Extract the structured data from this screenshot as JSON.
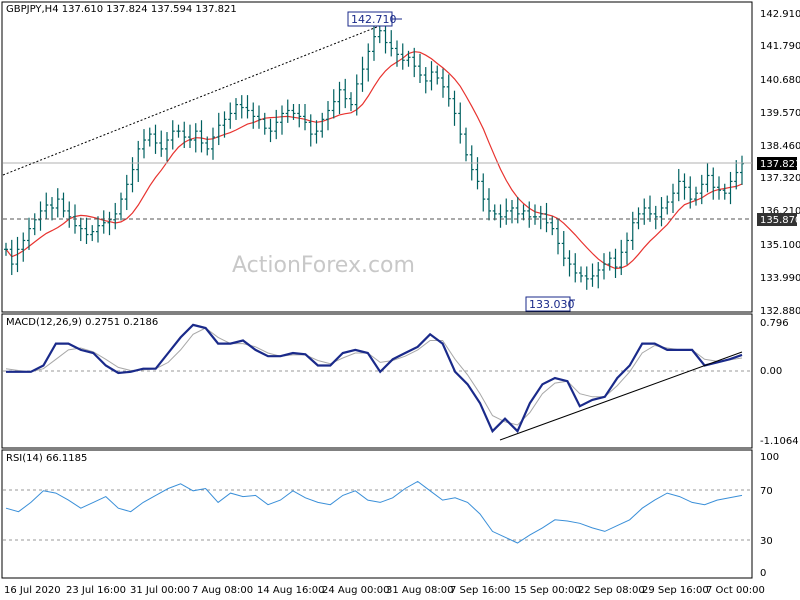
{
  "header": {
    "symbol": "GBPJPY,H4",
    "ohlc": "137.610 137.824 137.594 137.821"
  },
  "macd_panel": {
    "label": "MACD(12,26,9) 0.2751 0.2186"
  },
  "rsi_panel": {
    "label": "RSI(14) 66.1185"
  },
  "watermark": "ActionForex.com",
  "colors": {
    "candle": "#006060",
    "ma": "#e8332f",
    "macd_line": "#1a2a8a",
    "signal_line": "#a8a8a8",
    "rsi_line": "#3a8fd8",
    "callout_border": "#1a2a8a",
    "level_line": "#555555"
  },
  "chart_data": [
    {
      "type": "candlestick",
      "name": "price",
      "ylim": [
        132.88,
        142.9
      ],
      "y_ticks": [
        "142.910",
        "141.790",
        "140.680",
        "139.570",
        "138.460",
        "137.320",
        "136.210",
        "135.100",
        "133.990",
        "132.880"
      ],
      "current_price_label": "137.821",
      "level_label": "135.870",
      "callouts": [
        {
          "label": "142.710"
        },
        {
          "label": "133.030"
        }
      ],
      "x_labels": [
        "16 Jul 2020",
        "23 Jul 16:00",
        "31 Jul 00:00",
        "7 Aug 08:00",
        "14 Aug 16:00",
        "24 Aug 00:00",
        "31 Aug 08:00",
        "7 Sep 16:00",
        "15 Sep 00:00",
        "22 Sep 08:00",
        "29 Sep 16:00",
        "7 Oct 00:00"
      ],
      "close": [
        134.9,
        134.4,
        134.9,
        135.2,
        135.6,
        135.9,
        136.2,
        136.4,
        136.3,
        136.6,
        136.2,
        136.0,
        135.7,
        135.6,
        135.4,
        135.5,
        135.7,
        135.8,
        135.9,
        136.1,
        136.6,
        137.1,
        137.6,
        138.3,
        138.6,
        138.8,
        138.5,
        138.3,
        138.6,
        138.9,
        138.9,
        138.7,
        138.6,
        138.9,
        138.5,
        138.3,
        138.7,
        139.1,
        139.3,
        139.5,
        139.8,
        139.7,
        139.6,
        139.4,
        139.3,
        139.0,
        138.9,
        139.2,
        139.5,
        139.6,
        139.5,
        139.4,
        139.2,
        138.8,
        138.9,
        139.3,
        139.6,
        139.9,
        140.3,
        140.0,
        139.8,
        140.5,
        141.0,
        141.6,
        142.1,
        142.3,
        141.9,
        141.7,
        141.5,
        141.3,
        141.4,
        141.1,
        140.8,
        140.6,
        140.9,
        140.7,
        140.4,
        140.0,
        139.5,
        138.8,
        138.1,
        137.6,
        137.2,
        136.6,
        136.2,
        136.1,
        136.0,
        136.2,
        136.3,
        136.1,
        136.2,
        136.0,
        136.0,
        136.1,
        135.8,
        135.6,
        135.1,
        134.6,
        134.4,
        134.1,
        134.0,
        133.9,
        134.0,
        134.2,
        134.4,
        134.6,
        134.3,
        134.8,
        135.2,
        135.8,
        136.1,
        136.3,
        136.1,
        136.0,
        136.3,
        136.5,
        136.8,
        137.2,
        137.0,
        136.6,
        136.8,
        137.1,
        137.4,
        137.0,
        136.9,
        136.8,
        137.2,
        137.5,
        137.8
      ]
    },
    {
      "type": "line",
      "name": "MACD(12,26,9)",
      "ylim": [
        -1.1064,
        0.796
      ],
      "y_ticks": [
        "0.796",
        "0.00",
        "-1.1064"
      ],
      "series": [
        {
          "name": "MACD",
          "values": [
            0.0,
            0.0,
            0.0,
            0.1,
            0.45,
            0.45,
            0.35,
            0.3,
            0.1,
            -0.02,
            0.0,
            0.05,
            0.05,
            0.3,
            0.55,
            0.75,
            0.7,
            0.45,
            0.45,
            0.5,
            0.35,
            0.25,
            0.25,
            0.3,
            0.28,
            0.1,
            0.1,
            0.3,
            0.35,
            0.3,
            0.0,
            0.2,
            0.3,
            0.4,
            0.6,
            0.45,
            0.0,
            -0.2,
            -0.5,
            -0.95,
            -0.75,
            -0.95,
            -0.5,
            -0.2,
            -0.1,
            -0.15,
            -0.55,
            -0.45,
            -0.4,
            -0.1,
            0.1,
            0.45,
            0.45,
            0.35,
            0.35,
            0.35,
            0.1,
            0.15,
            0.2,
            0.27
          ]
        },
        {
          "name": "Signal",
          "values": [
            0.05,
            0.02,
            0.0,
            0.05,
            0.2,
            0.35,
            0.38,
            0.32,
            0.2,
            0.07,
            0.02,
            0.03,
            0.05,
            0.15,
            0.35,
            0.6,
            0.7,
            0.55,
            0.45,
            0.45,
            0.4,
            0.3,
            0.25,
            0.27,
            0.27,
            0.18,
            0.13,
            0.22,
            0.3,
            0.3,
            0.15,
            0.18,
            0.25,
            0.35,
            0.5,
            0.5,
            0.2,
            -0.05,
            -0.35,
            -0.7,
            -0.8,
            -0.85,
            -0.65,
            -0.35,
            -0.18,
            -0.15,
            -0.35,
            -0.4,
            -0.4,
            -0.22,
            0.0,
            0.3,
            0.42,
            0.38,
            0.35,
            0.35,
            0.2,
            0.17,
            0.19,
            0.22
          ]
        }
      ]
    },
    {
      "type": "line",
      "name": "RSI(14)",
      "ylim": [
        0,
        100
      ],
      "y_ticks": [
        "100",
        "70",
        "30",
        "0"
      ],
      "levels": [
        70,
        30
      ],
      "series": [
        {
          "name": "RSI",
          "values": [
            55,
            52,
            60,
            70,
            68,
            62,
            55,
            60,
            65,
            55,
            52,
            60,
            66,
            72,
            76,
            70,
            72,
            60,
            68,
            65,
            66,
            58,
            62,
            70,
            64,
            60,
            58,
            66,
            70,
            62,
            60,
            64,
            72,
            78,
            70,
            62,
            64,
            60,
            50,
            35,
            30,
            25,
            32,
            38,
            45,
            44,
            42,
            38,
            35,
            40,
            45,
            55,
            62,
            68,
            65,
            60,
            58,
            62,
            64,
            66
          ]
        }
      ]
    }
  ]
}
